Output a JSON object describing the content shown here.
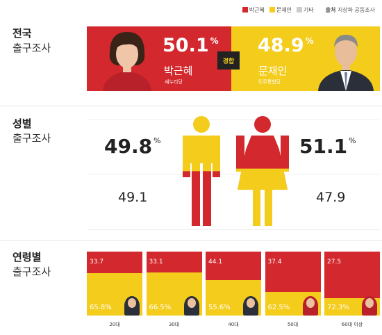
{
  "legend": {
    "items": [
      {
        "label": "박근혜",
        "color": "#d3282e"
      },
      {
        "label": "문재인",
        "color": "#f3cc1c"
      },
      {
        "label": "기타",
        "color": "#cccccc"
      }
    ],
    "source_label": "출처",
    "source_value": "지상파 공동조사"
  },
  "national": {
    "title": "전국",
    "subtitle": "출구조사",
    "badge": "경합",
    "park": {
      "pct": "50.1",
      "unit": "%",
      "name": "박근혜",
      "party": "새누리당"
    },
    "moon": {
      "pct": "48.9",
      "unit": "%",
      "name": "문재인",
      "party": "민주통합당"
    }
  },
  "gender": {
    "title": "성별",
    "subtitle": "출구조사",
    "male": {
      "park": "49.8",
      "park_unit": "%",
      "moon": "49.1",
      "park_share": 0.498
    },
    "female": {
      "moon": "51.1",
      "moon_unit": "%",
      "park": "47.9",
      "park_share": 0.479
    }
  },
  "age": {
    "title": "연령별",
    "subtitle": "출구조사"
  },
  "chart_data": {
    "type": "bar",
    "stacked": true,
    "categories": [
      "20대",
      "30대",
      "40대",
      "50대",
      "60대 이상"
    ],
    "series": [
      {
        "name": "박근혜",
        "color": "#d3282e",
        "values": [
          33.7,
          33.1,
          44.1,
          62.5,
          72.3
        ],
        "labels": [
          "33.7",
          "33.1",
          "44.1",
          "62.5%",
          "72.3%"
        ]
      },
      {
        "name": "문재인",
        "color": "#f3cc1c",
        "values": [
          65.8,
          66.5,
          55.6,
          37.4,
          27.5
        ],
        "labels": [
          "65.8%",
          "66.5%",
          "55.6%",
          "37.4",
          "27.5"
        ]
      }
    ],
    "ylim": [
      0,
      100
    ]
  }
}
